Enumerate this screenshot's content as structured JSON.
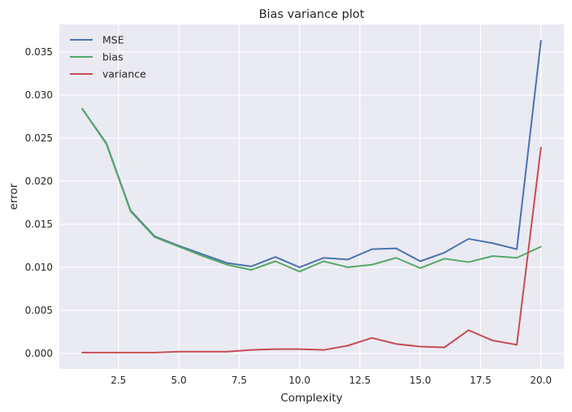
{
  "chart_data": {
    "type": "line",
    "title": "Bias variance plot",
    "xlabel": "Complexity",
    "ylabel": "error",
    "xlim": [
      0.05,
      20.95
    ],
    "ylim": [
      -0.0018,
      0.0382
    ],
    "xticks": [
      2.5,
      5.0,
      7.5,
      10.0,
      12.5,
      15.0,
      17.5,
      20.0
    ],
    "xtick_labels": [
      "2.5",
      "5.0",
      "7.5",
      "10.0",
      "12.5",
      "15.0",
      "17.5",
      "20.0"
    ],
    "yticks": [
      0.0,
      0.005,
      0.01,
      0.015,
      0.02,
      0.025,
      0.03,
      0.035
    ],
    "ytick_labels": [
      "0.000",
      "0.005",
      "0.010",
      "0.015",
      "0.020",
      "0.025",
      "0.030",
      "0.035"
    ],
    "grid": true,
    "legend_position": "top-left",
    "background_color": "#eaeaf2",
    "x": [
      1,
      2,
      3,
      4,
      5,
      6,
      7,
      8,
      9,
      10,
      11,
      12,
      13,
      14,
      15,
      16,
      17,
      18,
      19,
      20
    ],
    "series": [
      {
        "name": "MSE",
        "color": "#4c72b0",
        "values": [
          0.0284,
          0.0244,
          0.0166,
          0.0136,
          0.0125,
          0.0115,
          0.0105,
          0.0101,
          0.0112,
          0.01,
          0.0111,
          0.0109,
          0.0121,
          0.0122,
          0.0107,
          0.0117,
          0.0133,
          0.0128,
          0.0121,
          0.0363
        ]
      },
      {
        "name": "bias",
        "color": "#55a868",
        "values": [
          0.0284,
          0.0243,
          0.0165,
          0.0135,
          0.0124,
          0.0113,
          0.0103,
          0.0097,
          0.0107,
          0.0095,
          0.0107,
          0.01,
          0.0103,
          0.0111,
          0.0099,
          0.011,
          0.0106,
          0.0113,
          0.0111,
          0.0124
        ]
      },
      {
        "name": "variance",
        "color": "#c44e52",
        "values": [
          0.0001,
          0.0001,
          0.0001,
          0.0001,
          0.0002,
          0.0002,
          0.0002,
          0.0004,
          0.0005,
          0.0005,
          0.0004,
          0.0009,
          0.0018,
          0.0011,
          0.0008,
          0.0007,
          0.0027,
          0.0015,
          0.001,
          0.0239
        ]
      }
    ]
  }
}
